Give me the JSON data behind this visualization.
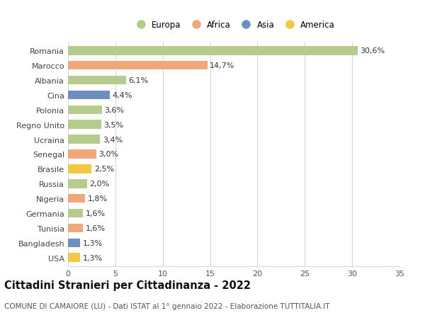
{
  "countries": [
    "Romania",
    "Marocco",
    "Albania",
    "Cina",
    "Polonia",
    "Regno Unito",
    "Ucraina",
    "Senegal",
    "Brasile",
    "Russia",
    "Nigeria",
    "Germania",
    "Tunisia",
    "Bangladesh",
    "USA"
  ],
  "values": [
    30.6,
    14.7,
    6.1,
    4.4,
    3.6,
    3.5,
    3.4,
    3.0,
    2.5,
    2.0,
    1.8,
    1.6,
    1.6,
    1.3,
    1.3
  ],
  "labels": [
    "30,6%",
    "14,7%",
    "6,1%",
    "4,4%",
    "3,6%",
    "3,5%",
    "3,4%",
    "3,0%",
    "2,5%",
    "2,0%",
    "1,8%",
    "1,6%",
    "1,6%",
    "1,3%",
    "1,3%"
  ],
  "continents": [
    "Europa",
    "Africa",
    "Europa",
    "Asia",
    "Europa",
    "Europa",
    "Europa",
    "Africa",
    "America",
    "Europa",
    "Africa",
    "Europa",
    "Africa",
    "Asia",
    "America"
  ],
  "colors": {
    "Europa": "#b5cc8e",
    "Africa": "#f0a87a",
    "Asia": "#6b8fc2",
    "America": "#f5c842"
  },
  "xlim": [
    0,
    35
  ],
  "xticks": [
    0,
    5,
    10,
    15,
    20,
    25,
    30,
    35
  ],
  "title": "Cittadini Stranieri per Cittadinanza - 2022",
  "subtitle": "COMUNE DI CAMAIORE (LU) - Dati ISTAT al 1° gennaio 2022 - Elaborazione TUTTITALIA.IT",
  "background_color": "#ffffff",
  "grid_color": "#d8d8d8",
  "bar_height": 0.6,
  "label_fontsize": 8.0,
  "tick_fontsize": 8.0,
  "title_fontsize": 10.5,
  "subtitle_fontsize": 7.5,
  "legend_fontsize": 8.5
}
